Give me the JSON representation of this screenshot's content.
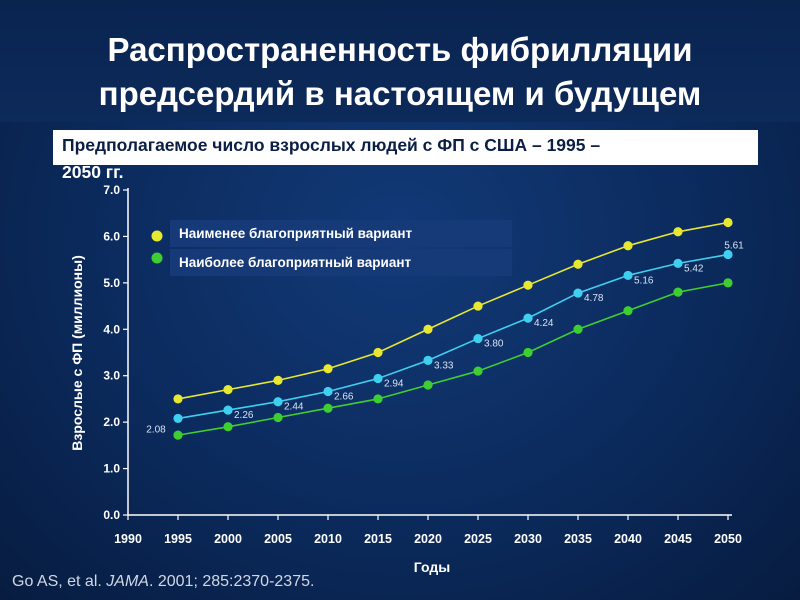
{
  "header": {
    "title": "Распространенность фибрилляции\nпредсердий в настоящем и будущем",
    "subtitle_line1": "Предполагаемое число взрослых людей с ФП с США – 1995 –",
    "subtitle_line2": "2050 гг."
  },
  "source": {
    "author": "Go AS, et al. ",
    "journal": "JAMA",
    "citation": ". 2001; 285:2370-2375."
  },
  "colors": {
    "yellow": "#e8e832",
    "cyan": "#3fd0f0",
    "green": "#3fce32",
    "axis": "#ffffff"
  },
  "chart_data": {
    "type": "line",
    "xlabel": "Годы",
    "ylabel": "Взрослые с ФП (миллионы)",
    "x_ticks": [
      "1990",
      "1995",
      "2000",
      "2005",
      "2010",
      "2015",
      "2020",
      "2025",
      "2030",
      "2035",
      "2040",
      "2045",
      "2050"
    ],
    "y_ticks": [
      "0.0",
      "1.0",
      "2.0",
      "3.0",
      "4.0",
      "5.0",
      "6.0",
      "7.0"
    ],
    "ylim": [
      0,
      7
    ],
    "xlim": [
      1990,
      2050
    ],
    "x": [
      1995,
      2000,
      2005,
      2010,
      2015,
      2020,
      2025,
      2030,
      2035,
      2040,
      2045,
      2050
    ],
    "legend_placement": "top-left",
    "grid": false,
    "series": [
      {
        "name": "Наименее благоприятный вариант",
        "color": "yellow",
        "values": [
          2.5,
          2.7,
          2.9,
          3.15,
          3.5,
          4.0,
          4.5,
          4.95,
          5.4,
          5.8,
          6.1,
          6.3
        ]
      },
      {
        "name": "",
        "color": "cyan",
        "values": [
          2.08,
          2.26,
          2.44,
          2.66,
          2.94,
          3.33,
          3.8,
          4.24,
          4.78,
          5.16,
          5.42,
          5.61
        ],
        "labels": [
          "2.08",
          "2.26",
          "2.44",
          "2.66",
          "2.94",
          "3.33",
          "3.80",
          "4.24",
          "4.78",
          "5.16",
          "5.42",
          "5.61"
        ]
      },
      {
        "name": "Наиболее благоприятный вариант",
        "color": "green",
        "values": [
          1.72,
          1.9,
          2.1,
          2.3,
          2.5,
          2.8,
          3.1,
          3.5,
          4.0,
          4.4,
          4.8,
          5.0
        ]
      }
    ]
  }
}
